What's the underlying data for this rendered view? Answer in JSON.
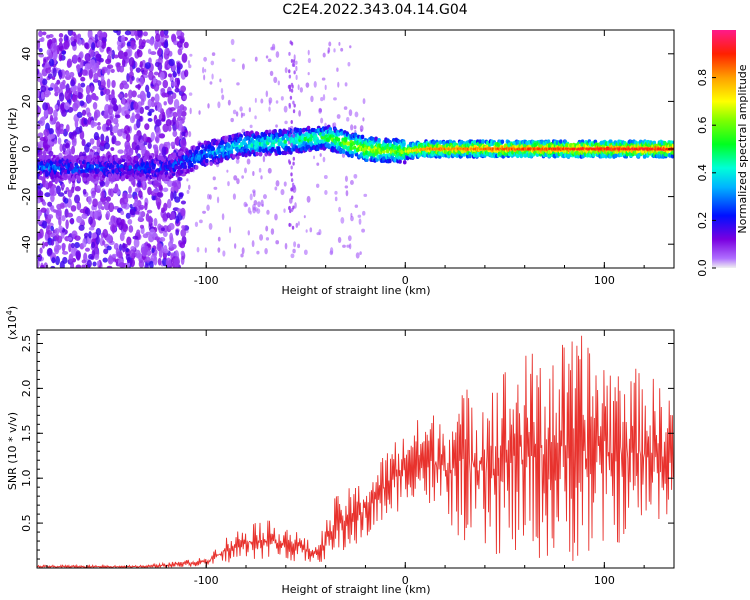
{
  "title": "C2E4.2022.343.04.14.G04",
  "chart_data": [
    {
      "type": "heatmap",
      "xlabel": "Height of straight line (km)",
      "ylabel": "Frequency (Hz)",
      "xlim": [
        -185,
        135
      ],
      "ylim": [
        -50,
        50
      ],
      "xticks": [
        -100,
        0,
        100
      ],
      "yticks": [
        -40,
        -20,
        0,
        20,
        40
      ],
      "colorbar": {
        "label": "Normalized spectral amplitude",
        "range": [
          0,
          1
        ],
        "ticks": [
          "0.0",
          "0.2",
          "0.4",
          "0.6",
          "0.8"
        ]
      },
      "ridge": [
        {
          "x": -185,
          "f": -8,
          "amp": 0.35
        },
        {
          "x": -150,
          "f": -8,
          "amp": 0.3
        },
        {
          "x": -120,
          "f": -8,
          "amp": 0.3
        },
        {
          "x": -100,
          "f": -2,
          "amp": 0.4
        },
        {
          "x": -80,
          "f": 2,
          "amp": 0.5
        },
        {
          "x": -60,
          "f": 3,
          "amp": 0.55
        },
        {
          "x": -40,
          "f": 5,
          "amp": 0.6
        },
        {
          "x": -20,
          "f": 0,
          "amp": 0.75
        },
        {
          "x": 0,
          "f": -1,
          "amp": 0.7
        },
        {
          "x": 10,
          "f": 0,
          "amp": 0.85
        },
        {
          "x": 50,
          "f": 0,
          "amp": 0.9
        },
        {
          "x": 100,
          "f": 0,
          "amp": 0.95
        },
        {
          "x": 135,
          "f": 0,
          "amp": 0.95
        }
      ]
    },
    {
      "type": "line",
      "xlabel": "Height of straight line (km)",
      "ylabel": "SNR (10 * v/v)",
      "multiplier_label": "(x10",
      "multiplier_exp": "4",
      "multiplier_close": ")",
      "xlim": [
        -185,
        135
      ],
      "ylim": [
        0,
        2.65
      ],
      "xticks": [
        -100,
        0,
        100
      ],
      "yticks": [
        "0.5",
        "1.0",
        "1.5",
        "2.0",
        "2.5"
      ],
      "color": "#e8322d",
      "envelope": [
        {
          "x": -185,
          "lo": 0.0,
          "hi": 0.03
        },
        {
          "x": -130,
          "lo": 0.0,
          "hi": 0.03
        },
        {
          "x": -100,
          "lo": 0.02,
          "hi": 0.12
        },
        {
          "x": -90,
          "lo": 0.05,
          "hi": 0.35
        },
        {
          "x": -75,
          "lo": 0.1,
          "hi": 0.55
        },
        {
          "x": -60,
          "lo": 0.08,
          "hi": 0.5
        },
        {
          "x": -45,
          "lo": 0.05,
          "hi": 0.25
        },
        {
          "x": -35,
          "lo": 0.1,
          "hi": 0.8
        },
        {
          "x": -20,
          "lo": 0.3,
          "hi": 1.0
        },
        {
          "x": -5,
          "lo": 0.6,
          "hi": 1.45
        },
        {
          "x": 5,
          "lo": 0.8,
          "hi": 1.65
        },
        {
          "x": 20,
          "lo": 0.5,
          "hi": 1.8
        },
        {
          "x": 35,
          "lo": 0.15,
          "hi": 2.1
        },
        {
          "x": 60,
          "lo": 0.1,
          "hi": 2.4
        },
        {
          "x": 90,
          "lo": 0.05,
          "hi": 2.6
        },
        {
          "x": 110,
          "lo": 0.3,
          "hi": 2.3
        },
        {
          "x": 135,
          "lo": 0.6,
          "hi": 2.0
        }
      ]
    }
  ]
}
